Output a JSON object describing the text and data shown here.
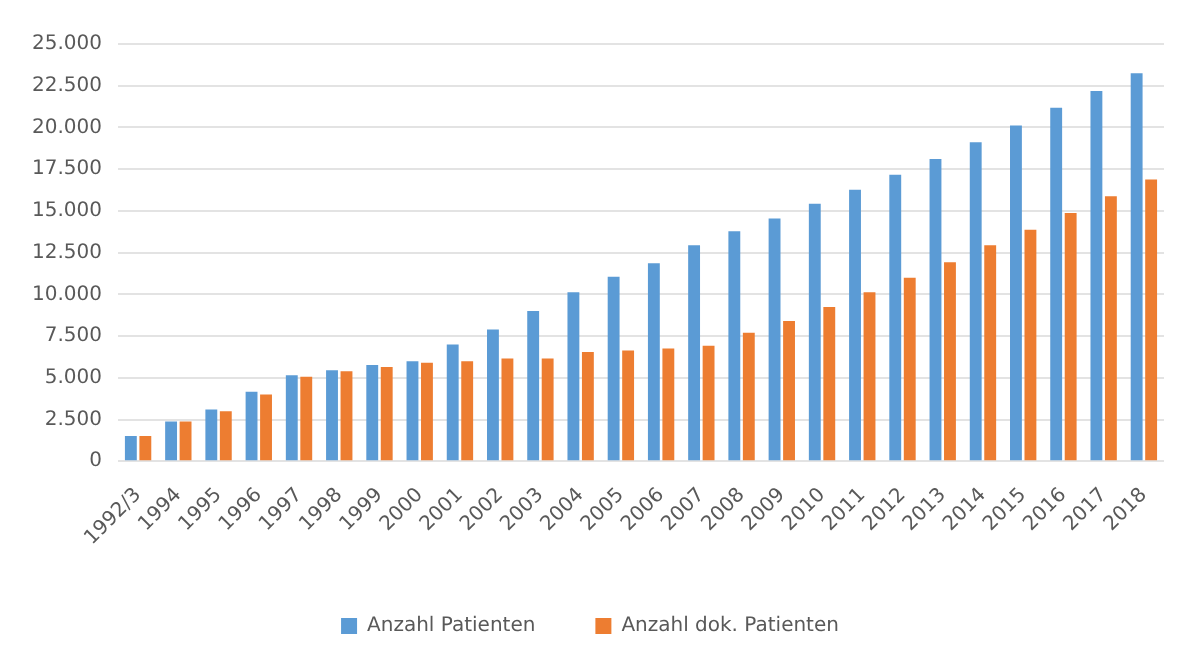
{
  "chart_data": {
    "type": "bar",
    "categories": [
      "1992/3",
      "1994",
      "1995",
      "1996",
      "1997",
      "1998",
      "1999",
      "2000",
      "2001",
      "2002",
      "2003",
      "2004",
      "2005",
      "2006",
      "2007",
      "2008",
      "2009",
      "2010",
      "2011",
      "2012",
      "2013",
      "2014",
      "2015",
      "2016",
      "2017",
      "2018"
    ],
    "series": [
      {
        "name": "Anzahl Patienten",
        "color": "#5b9bd5",
        "values": [
          1520,
          2390,
          3100,
          4160,
          5160,
          5450,
          5770,
          6000,
          7000,
          7900,
          9000,
          10130,
          11060,
          11870,
          12940,
          13780,
          14550,
          15430,
          16270,
          17170,
          18110,
          19110,
          20120,
          21180,
          22190,
          23250
        ]
      },
      {
        "name": "Anzahl dok. Patienten",
        "color": "#ed7d31",
        "values": [
          1520,
          2390,
          3000,
          4000,
          5060,
          5390,
          5650,
          5900,
          6000,
          6160,
          6160,
          6550,
          6630,
          6760,
          6920,
          7700,
          8410,
          9250,
          10120,
          11000,
          11930,
          12940,
          13870,
          14880,
          15880,
          16880
        ]
      }
    ],
    "ylim": [
      0,
      25000
    ],
    "yticks": [
      0,
      {
        "value": 2500,
        "label": "2.500"
      },
      {
        "value": 5000,
        "label": "5.000"
      },
      {
        "value": 7500,
        "label": "7.500"
      },
      {
        "value": 10000,
        "label": "10.000"
      },
      {
        "value": 12500,
        "label": "12.500"
      },
      {
        "value": 15000,
        "label": "15.000"
      },
      {
        "value": 17500,
        "label": "17.500"
      },
      {
        "value": 20000,
        "label": "20.000"
      },
      {
        "value": 22500,
        "label": "22.500"
      },
      {
        "value": 25000,
        "label": "25.000"
      }
    ],
    "grid": "y",
    "legend": "bottom"
  }
}
